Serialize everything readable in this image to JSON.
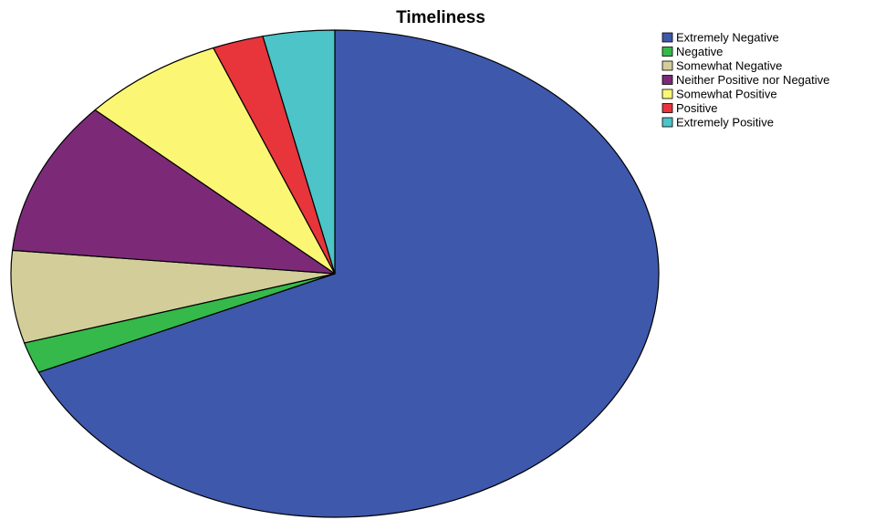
{
  "chart_data": {
    "type": "pie",
    "title": "Timeliness",
    "categories": [
      "Extremely Negative",
      "Negative",
      "Somewhat Negative",
      "Neither Positive nor Negative",
      "Somewhat Positive",
      "Positive",
      "Extremely Positive"
    ],
    "values": [
      67.0,
      2.0,
      6.0,
      10.0,
      7.0,
      2.5,
      3.5
    ],
    "colors": [
      "#3e58ab",
      "#35b94a",
      "#d3cd99",
      "#7c2a78",
      "#fbf774",
      "#e8343b",
      "#4cc4c8"
    ],
    "start_direction": "top",
    "direction": "clockwise",
    "legend_position": "top-right",
    "slice_border_color": "#000000"
  }
}
